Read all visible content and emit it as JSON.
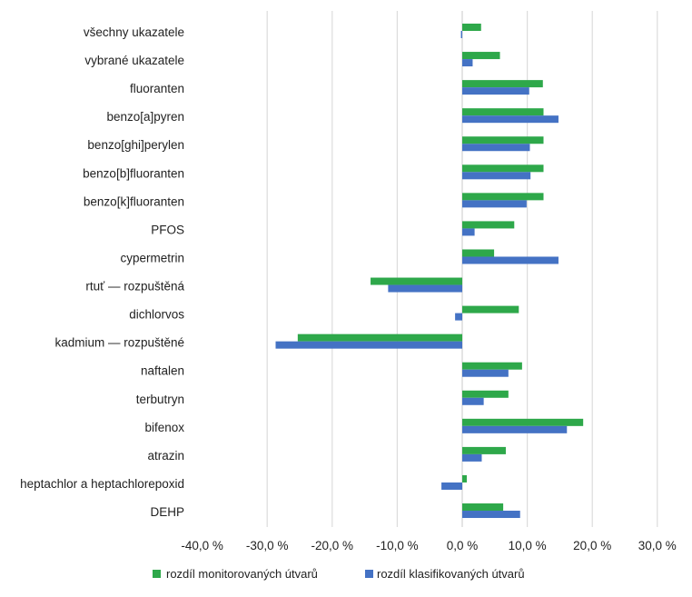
{
  "chart_data": {
    "type": "bar",
    "orientation": "horizontal",
    "categories": [
      "všechny ukazatele",
      "vybrané ukazatele",
      "fluoranten",
      "benzo[a]pyren",
      "benzo[ghi]perylen",
      "benzo[b]fluoranten",
      "benzo[k]fluoranten",
      "PFOS",
      "cypermetrin",
      "rtuť — rozpuštěná",
      "dichlorvos",
      "kadmium — rozpuštěné",
      "naftalen",
      "terbutryn",
      "bifenox",
      "atrazin",
      "heptachlor a heptachlorepoxid",
      "DEHP"
    ],
    "series": [
      {
        "name": "rozdíl monitorovaných útvarů",
        "color": "#2ea84a",
        "values": [
          2.9,
          5.8,
          12.4,
          12.5,
          12.5,
          12.5,
          12.5,
          8.0,
          4.9,
          -14.1,
          8.7,
          -25.3,
          9.2,
          7.1,
          18.6,
          6.7,
          0.7,
          6.3
        ]
      },
      {
        "name": "rozdíl klasifikovaných útvarů",
        "color": "#4472c4",
        "values": [
          -0.2,
          1.6,
          10.3,
          14.8,
          10.4,
          10.5,
          9.9,
          1.9,
          14.8,
          -11.4,
          -1.1,
          -28.7,
          7.1,
          3.3,
          16.1,
          3.0,
          -3.2,
          8.9
        ]
      }
    ],
    "xlim": [
      -40,
      30
    ],
    "xticks": [
      "-40,0 %",
      "-30,0 %",
      "-20,0 %",
      "-10,0 %",
      "0,0 %",
      "10,0 %",
      "20,0 %",
      "30,0 %"
    ],
    "tick_values": [
      -40,
      -30,
      -20,
      -10,
      0,
      10,
      20,
      30
    ],
    "grid": true,
    "legend": "bottom"
  }
}
